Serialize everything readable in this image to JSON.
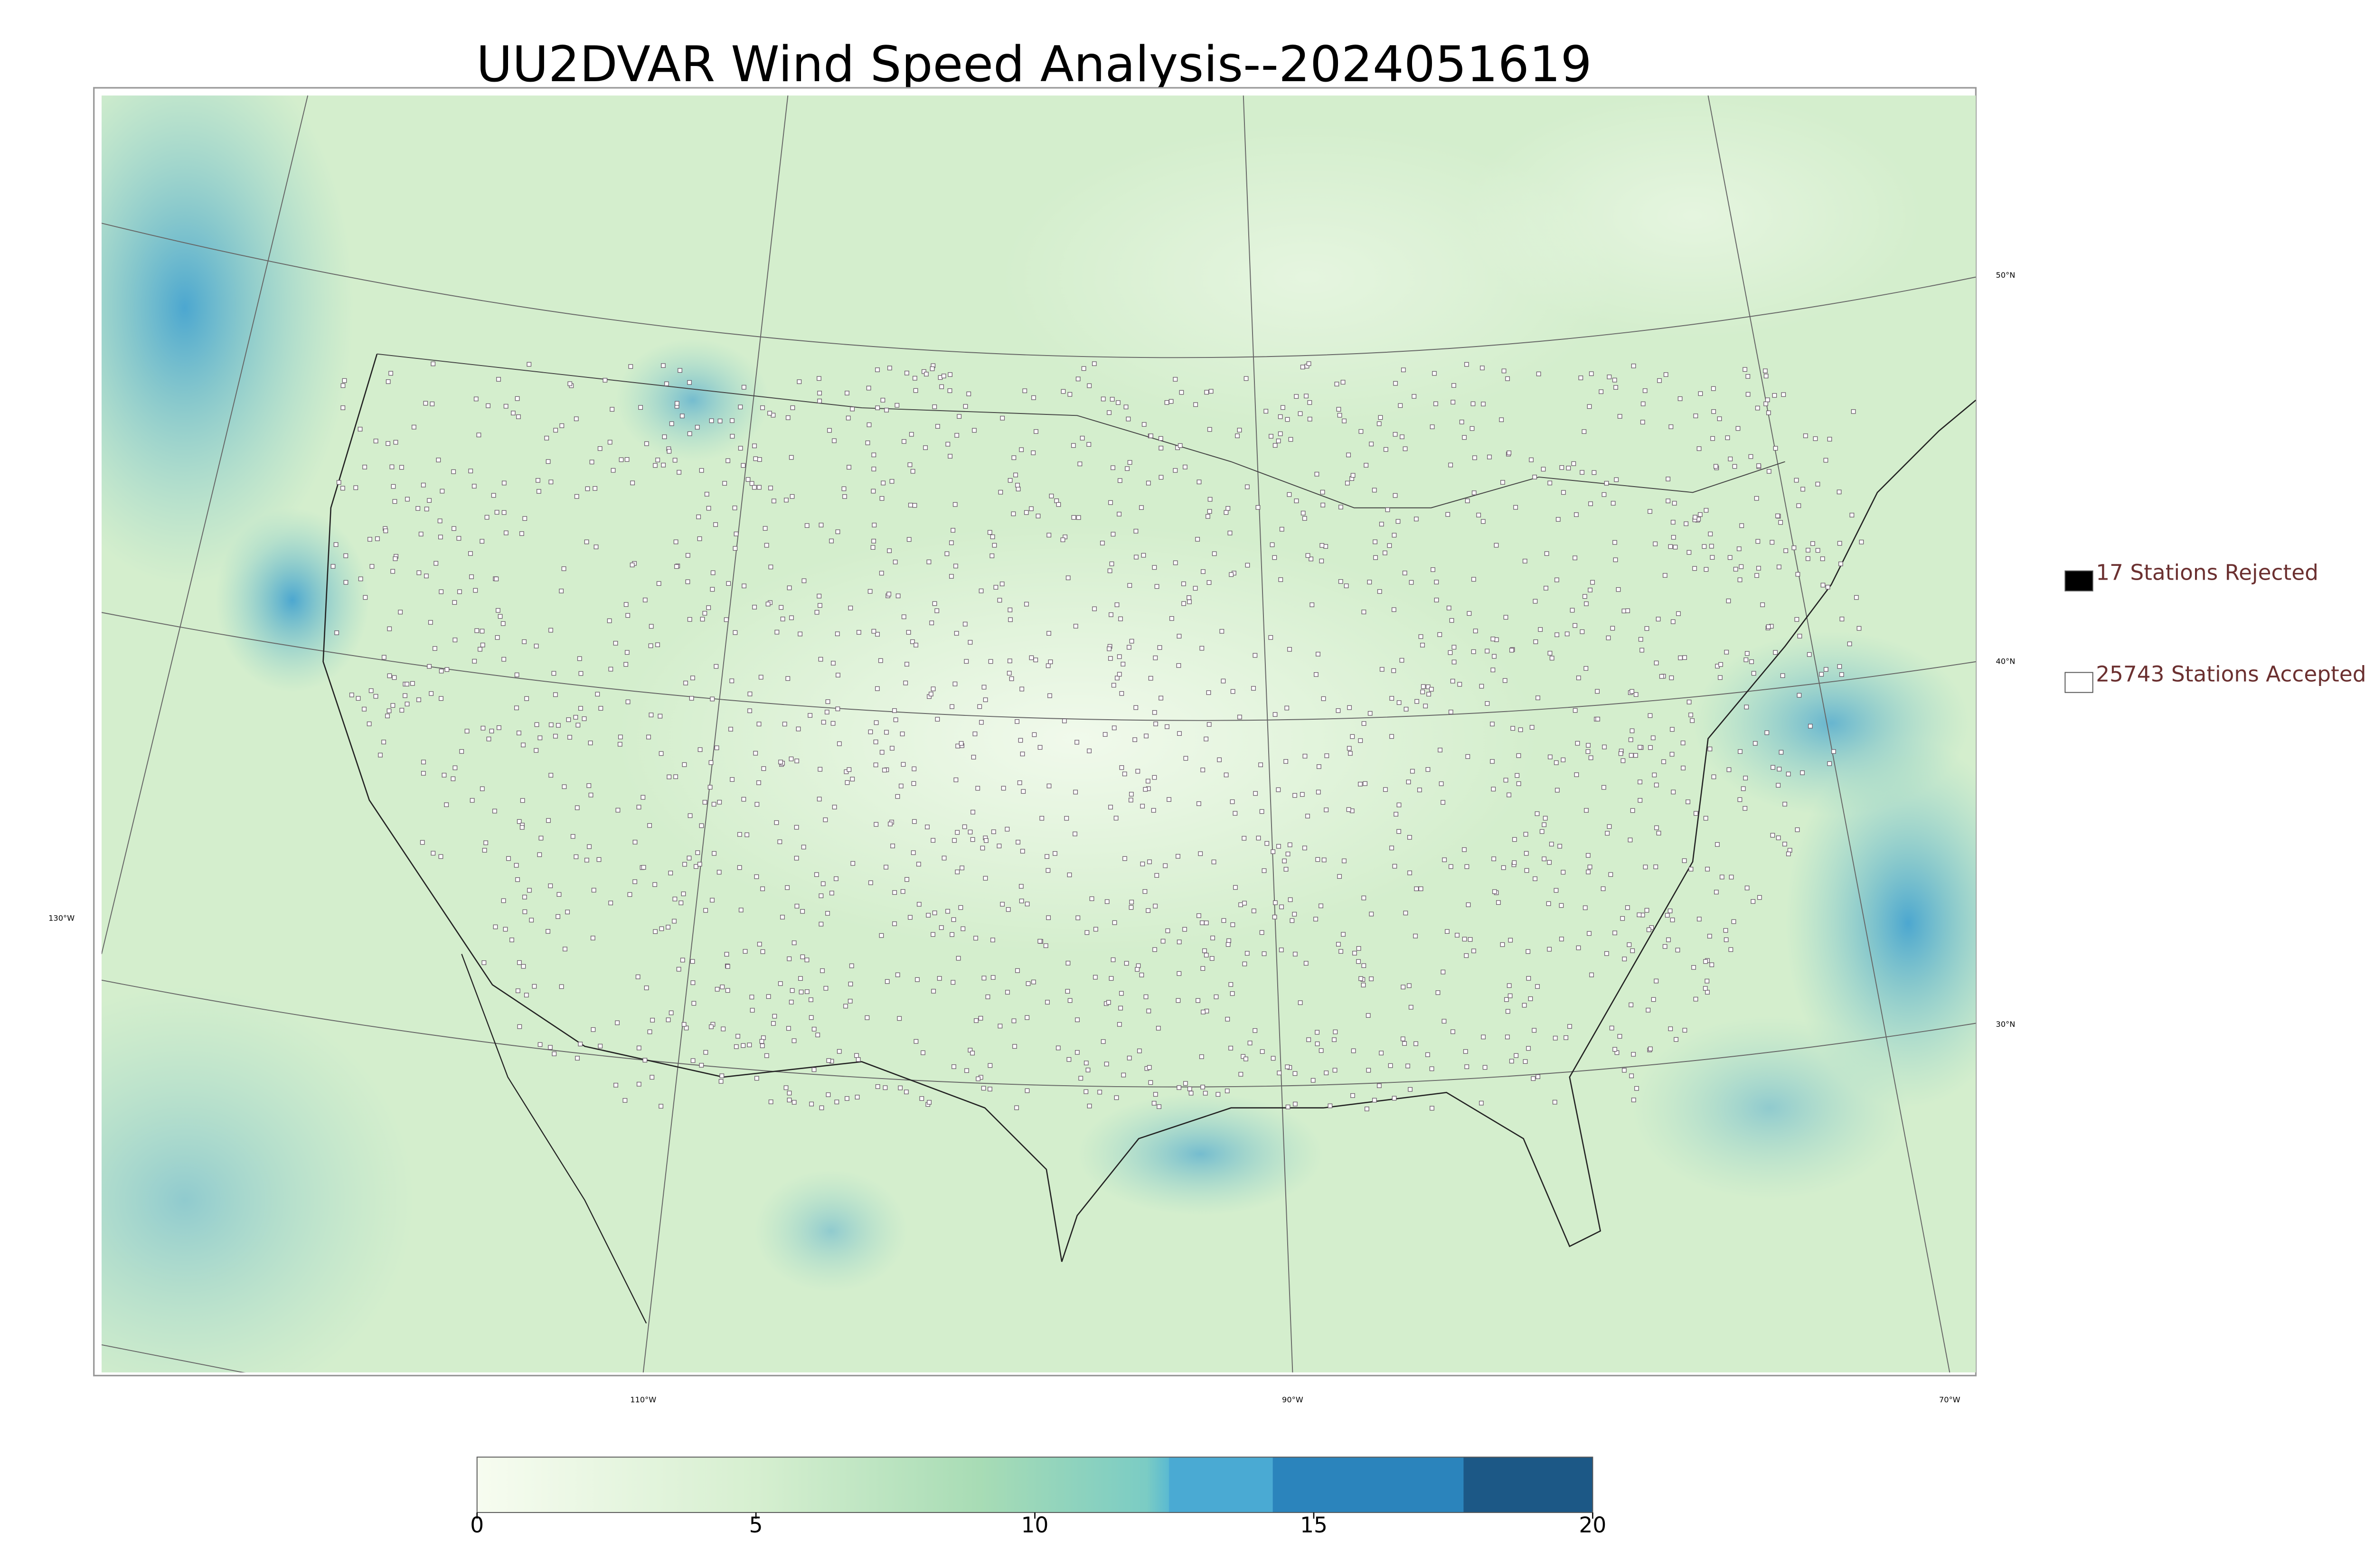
{
  "title": "UU2DVAR Wind Speed Analysis--2024051619",
  "legend": [
    {
      "label": "17 Stations Rejected",
      "color": "#000000"
    },
    {
      "label": "25743 Stations Accepted",
      "color": "#ffffff"
    }
  ],
  "latitude_labels": [
    "50°N",
    "40°N",
    "30°N"
  ],
  "longitude_labels": [
    "130°W",
    "110°W",
    "90°W",
    "70°W"
  ],
  "colorbar": {
    "lim": [
      0,
      20
    ],
    "ticks": [
      0,
      5,
      10,
      15,
      20
    ]
  }
}
